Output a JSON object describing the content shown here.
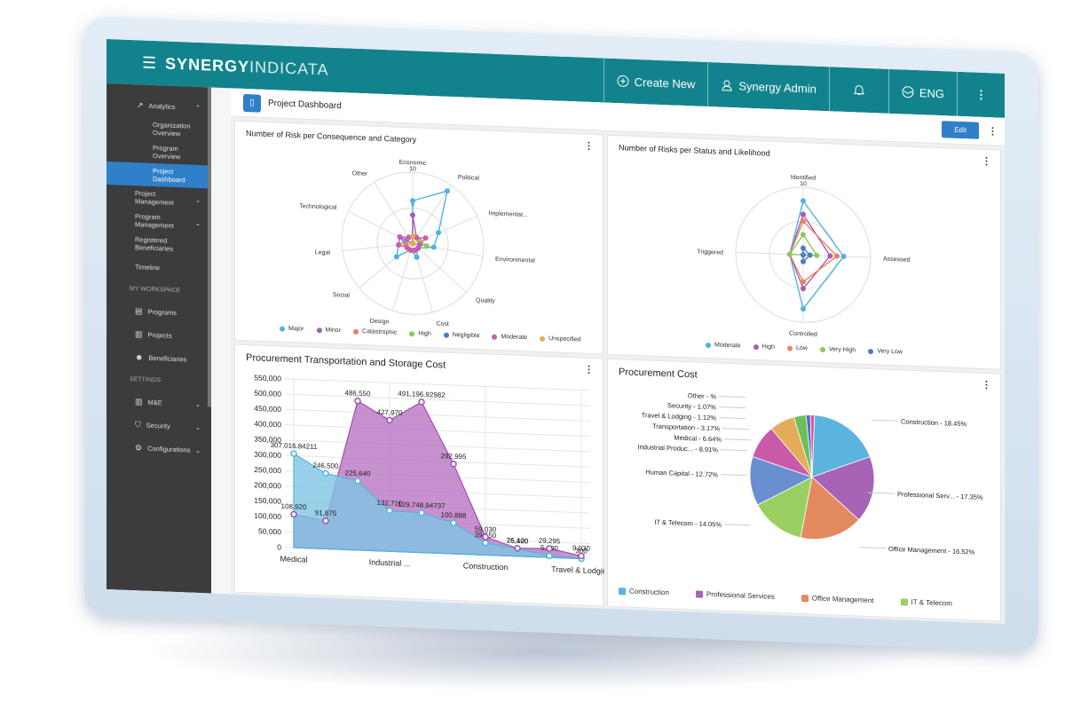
{
  "app": {
    "menu_icon": "☰",
    "logo_bold": "SYNERGY",
    "logo_light": "INDICATA"
  },
  "topbar": {
    "create_new": "Create New",
    "user": "Synergy Admin",
    "language": "ENG",
    "more": "⋮"
  },
  "sidebar": {
    "analytics": "Analytics",
    "analytics_sub": [
      "Organization Overview",
      "Program Overview",
      "Project Dashboard"
    ],
    "items": [
      "Project Management",
      "Program Management",
      "Registered Beneficiaries",
      "Timeline"
    ],
    "workspace_header": "MY WORKSPACE",
    "workspace": [
      "Programs",
      "Projects",
      "Beneficiaries"
    ],
    "settings_header": "SETTINGS",
    "settings": [
      "M&E",
      "Security",
      "Configurations"
    ]
  },
  "page": {
    "title": "Project Dashboard",
    "edit": "Edit"
  },
  "colors": {
    "teal": "#12838c",
    "blue": "#2f7fc9",
    "sidebar": "#3c3c3c"
  },
  "chart_data": [
    {
      "type": "radar",
      "title": "Number of Risk per Consequence and Category",
      "axes": [
        "Economic",
        "Political",
        "Implementat...",
        "Environmental",
        "Quality",
        "Cost",
        "Design",
        "Social",
        "Legal",
        "Technological",
        "Other"
      ],
      "rlim": [
        0,
        10
      ],
      "rticks": [
        5,
        10
      ],
      "series": [
        {
          "name": "Major",
          "color": "#4fb3e0",
          "values": [
            6,
            9,
            4,
            3,
            1,
            2,
            1,
            3,
            2,
            1,
            0
          ]
        },
        {
          "name": "Minor",
          "color": "#a85bb8",
          "values": [
            4,
            1,
            1,
            1,
            1,
            1,
            1,
            1,
            1,
            2,
            0
          ]
        },
        {
          "name": "Catastrophic",
          "color": "#e8845a",
          "values": [
            0,
            0,
            0,
            1,
            0,
            0,
            0,
            0,
            1,
            0,
            0
          ]
        },
        {
          "name": "High",
          "color": "#8dc85c",
          "values": [
            1,
            1,
            1,
            2,
            0,
            0,
            0,
            0,
            0,
            0,
            0
          ]
        },
        {
          "name": "Negligible",
          "color": "#4d7cc7",
          "values": [
            1,
            0,
            0,
            0,
            0,
            0,
            0,
            0,
            0,
            0,
            0
          ]
        },
        {
          "name": "Moderate",
          "color": "#cc5ab0",
          "values": [
            1,
            1,
            2,
            1,
            1,
            1,
            1,
            1,
            2,
            2,
            1
          ]
        },
        {
          "name": "Unspecified",
          "color": "#e8aa4a",
          "values": [
            1,
            0,
            0,
            0,
            0,
            0,
            0,
            0,
            0,
            0,
            0
          ]
        }
      ]
    },
    {
      "type": "radar",
      "title": "Number of Risks per Status and Likelihood",
      "axes": [
        "Identified",
        "Assessed",
        "Controlled",
        "Triggered"
      ],
      "rlim": [
        0,
        10
      ],
      "rticks": [
        0,
        10
      ],
      "series": [
        {
          "name": "Moderate",
          "color": "#4fb3e0",
          "values": [
            8,
            6,
            8,
            2
          ]
        },
        {
          "name": "High",
          "color": "#a85bb8",
          "values": [
            6,
            4,
            5,
            2
          ]
        },
        {
          "name": "Low",
          "color": "#e8845a",
          "values": [
            5,
            5,
            4,
            2
          ]
        },
        {
          "name": "Very High",
          "color": "#8dc85c",
          "values": [
            3,
            2,
            0,
            2
          ]
        },
        {
          "name": "Very Low",
          "color": "#4d7cc7",
          "values": [
            1,
            1,
            1,
            0
          ]
        }
      ]
    },
    {
      "type": "area",
      "title": "Procurement Transportation and Storage Cost",
      "categories": [
        "Medical",
        "",
        "",
        "Industrial ...",
        "",
        "",
        "Construction",
        "",
        "",
        "Travel & Lodging"
      ],
      "x_labels_shown": [
        "Medical",
        "Industrial ...",
        "Construction",
        "Travel & Lodging"
      ],
      "ylim": [
        0,
        550000
      ],
      "yticks": [
        "550,000",
        "500,000",
        "450,000",
        "400,000",
        "350,000",
        "300,000",
        "250,000",
        "200,000",
        "150,000",
        "100,000",
        "50,000",
        "0"
      ],
      "series": [
        {
          "name": "Transportation",
          "color": "#7fc4e4",
          "values": [
            307016.84211,
            246500,
            225640,
            132710,
            129748.94737,
            100888,
            39550,
            25420,
            5690,
            300
          ],
          "labels": [
            "307,016.84211",
            "246,500",
            "225,640",
            "132,710",
            "129,748.94737",
            "100,888",
            "39,550",
            "25,420",
            "5,690",
            "300"
          ]
        },
        {
          "name": "Storage",
          "color": "#b46cc0",
          "values": [
            108920,
            91875,
            486550,
            427970,
            491196.92982,
            292995,
            59030,
            26100,
            29295,
            9030
          ],
          "labels": [
            "108,920",
            "91,875",
            "486,550",
            "427,970",
            "491,196.92982",
            "292,995",
            "59,030",
            "26,100",
            "29,295",
            "9,030"
          ]
        }
      ]
    },
    {
      "type": "pie",
      "title": "Procurement Cost",
      "slices": [
        {
          "label": "Construction",
          "value": 18.45,
          "color": "#5bb4e0",
          "text": "Construction - 18.45%"
        },
        {
          "label": "Professional Services",
          "value": 17.35,
          "color": "#a763b5",
          "text": "Professional Serv... - 17.35%"
        },
        {
          "label": "Office Management",
          "value": 16.52,
          "color": "#e38a5e",
          "text": "Office Management - 16.52%"
        },
        {
          "label": "IT & Telecom",
          "value": 14.05,
          "color": "#9ccf62",
          "text": "IT & Telecom - 14.05%"
        },
        {
          "label": "Human Capital",
          "value": 12.72,
          "color": "#6a8fd0",
          "text": "Human Capital - 12.72%"
        },
        {
          "label": "Industrial Produc...",
          "value": 8.91,
          "color": "#c95aa8",
          "text": "Industrial Produc... - 8.91%"
        },
        {
          "label": "Medical",
          "value": 6.64,
          "color": "#e5ad5a",
          "text": "Medical - 6.64%"
        },
        {
          "label": "Transportation",
          "value": 3.17,
          "color": "#6cbf58",
          "text": "Transportation - 3.17%"
        },
        {
          "label": "Travel & Lodging",
          "value": 1.12,
          "color": "#4f6cc4",
          "text": "Travel & Lodging - 1.12%"
        },
        {
          "label": "Security",
          "value": 1.07,
          "color": "#d65aa8",
          "text": "Security - 1.07%"
        },
        {
          "label": "Other",
          "value": 0,
          "color": "#999999",
          "text": "Other - %"
        }
      ],
      "legend": [
        "Construction",
        "Professional Services",
        "Office Management",
        "IT & Telecom"
      ]
    }
  ]
}
